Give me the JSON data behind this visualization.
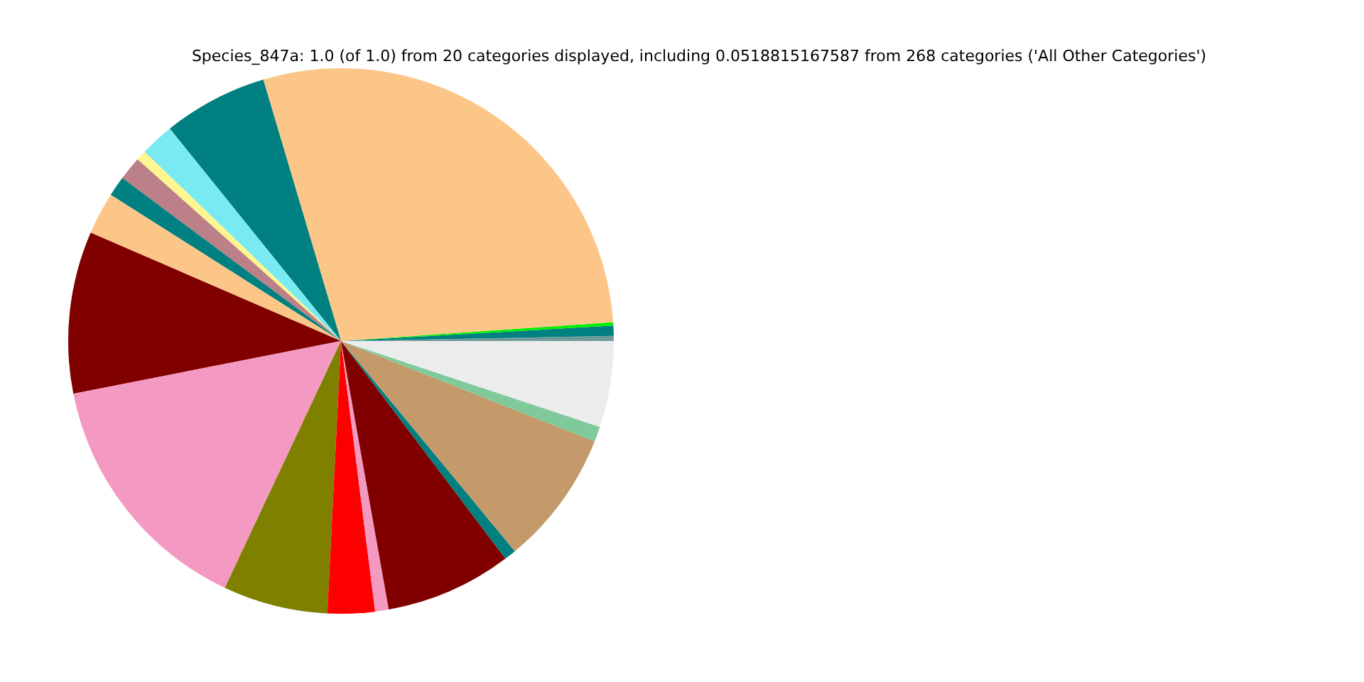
{
  "chart_data": {
    "type": "pie",
    "title": "Species_847a: 1.0 (of 1.0) from 20 categories displayed, including 0.0518815167587 from 268 categories ('All Other Categories')",
    "categories": [
      null,
      null,
      null,
      null,
      null,
      null,
      null,
      null,
      null,
      null,
      null,
      null,
      null,
      null,
      null,
      null,
      null,
      null,
      null,
      null
    ],
    "values": [
      0.3,
      0.6,
      0.2,
      28.5,
      6.2,
      2.0,
      0.6,
      1.4,
      1.2,
      2.5,
      9.6,
      14.9,
      6.2,
      2.8,
      0.8,
      7.5,
      0.7,
      8.0,
      0.9,
      5.1
    ],
    "colors": [
      "#6f9a9a",
      "#008080",
      "#00ee00",
      "#fdc689",
      "#008080",
      "#7aeaf2",
      "#fff68f",
      "#bc8088",
      "#008080",
      "#fdc689",
      "#800000",
      "#f49ac2",
      "#808000",
      "#ff0000",
      "#f49ac2",
      "#800000",
      "#008080",
      "#c49a6a",
      "#7fc99a",
      "#ececec"
    ]
  }
}
